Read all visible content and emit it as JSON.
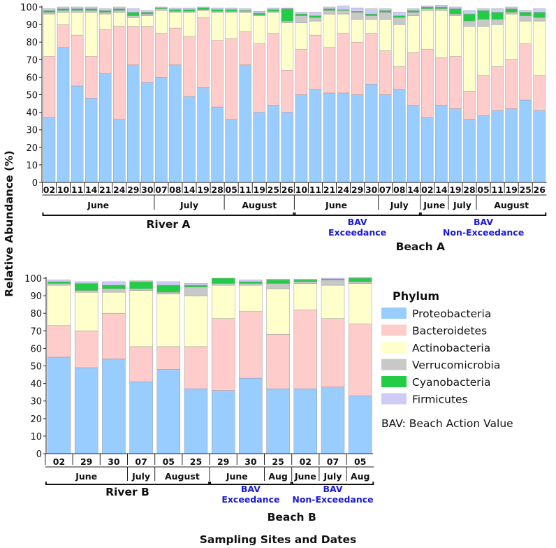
{
  "chart_data": {
    "type": "bar",
    "stacked": true,
    "ylabel": "Relative Abundance (%)",
    "xlabel": "Sampling Sites and Dates",
    "ylim": [
      0,
      100
    ],
    "yticks": [
      0,
      10,
      20,
      30,
      40,
      50,
      60,
      70,
      80,
      90,
      100
    ],
    "legend": {
      "title": "Phylum",
      "entries": [
        "Proteobacteria",
        "Bacteroidetes",
        "Actinobacteria",
        "Verrucomicrobia",
        "Cyanobacteria",
        "Firmicutes"
      ],
      "colors": [
        "#99ccff",
        "#ffcccc",
        "#ffffcc",
        "#c8c8c8",
        "#22cc44",
        "#ccccf7"
      ],
      "note": "BAV: Beach Action Value"
    },
    "panels": [
      {
        "name": "top",
        "categories": [
          "02",
          "10",
          "11",
          "14",
          "21",
          "24",
          "29",
          "30",
          "07",
          "08",
          "14",
          "19",
          "28",
          "05",
          "11",
          "19",
          "25",
          "26",
          "10",
          "11",
          "21",
          "24",
          "29",
          "30",
          "07",
          "08",
          "14",
          "02",
          "14",
          "19",
          "28",
          "05",
          "11",
          "19",
          "25",
          "26"
        ],
        "months": [
          {
            "label": "June",
            "count": 8
          },
          {
            "label": "July",
            "count": 5
          },
          {
            "label": "August",
            "count": 5
          },
          {
            "label": "June",
            "count": 6
          },
          {
            "label": "July",
            "count": 3
          },
          {
            "label": "June",
            "count": 2
          },
          {
            "label": "July",
            "count": 2
          },
          {
            "label": "August",
            "count": 5
          }
        ],
        "site_groups": [
          {
            "label": "River A",
            "count": 18
          },
          {
            "label": "",
            "count": 9,
            "bav": [
              "BAV",
              "Exceedance"
            ]
          },
          {
            "label": "",
            "count": 9,
            "bav": [
              "BAV",
              "Non-Exceedance"
            ]
          }
        ],
        "beach_label": "Beach A",
        "series": [
          {
            "name": "Proteobacteria",
            "values": [
              37,
              77,
              55,
              48,
              62,
              36,
              67,
              57,
              60,
              67,
              49,
              54,
              43,
              36,
              67,
              40,
              44,
              40,
              50,
              53,
              51,
              51,
              50,
              56,
              50,
              53,
              44,
              37,
              44,
              42,
              36,
              38,
              41,
              42,
              47,
              41
            ]
          },
          {
            "name": "Bacteroidetes",
            "values": [
              35,
              13,
              29,
              24,
              25,
              53,
              22,
              32,
              25,
              21,
              34,
              40,
              38,
              46,
              19,
              39,
              41,
              24,
              26,
              31,
              26,
              34,
              30,
              29,
              25,
              13,
              30,
              39,
              27,
              30,
              16,
              23,
              25,
              28,
              32,
              20
            ]
          },
          {
            "name": "Actinobacteria",
            "values": [
              24,
              7,
              13,
              25,
              9,
              8,
              5,
              6,
              13,
              9,
              14,
              4,
              16,
              15,
              11,
              16,
              12,
              27,
              15,
              8,
              19,
              11,
              13,
              8,
              18,
              24,
              21,
              22,
              27,
              23,
              37,
              28,
              24,
              26,
              13,
              31
            ]
          },
          {
            "name": "Verrucomicrobia",
            "values": [
              1,
              1,
              1,
              1,
              1,
              1,
              1,
              1,
              1,
              0.5,
              0.5,
              0.5,
              0.5,
              0.5,
              0.5,
              0.5,
              0.5,
              1,
              4,
              2,
              2,
              2,
              4,
              2,
              4,
              4,
              2,
              1,
              1,
              1,
              3,
              4,
              3,
              1,
              3,
              2
            ]
          },
          {
            "name": "Cyanobacteria",
            "values": [
              1,
              1,
              1,
              1,
              1,
              1,
              2,
              1,
              0.5,
              1,
              1,
              1,
              1,
              1,
              0.5,
              1,
              1,
              7,
              1,
              1,
              1,
              0.5,
              0.5,
              1,
              1,
              1,
              1,
              1,
              1,
              3,
              4,
              5,
              4,
              2,
              2,
              3
            ]
          },
          {
            "name": "Firmicutes",
            "values": [
              1,
              1,
              1,
              1,
              1,
              1,
              2,
              1,
              0.5,
              1,
              1,
              0.5,
              1,
              1,
              1,
              1,
              1,
              0.5,
              1,
              2,
              1,
              2,
              2,
              3,
              1,
              2,
              1,
              0.5,
              1,
              1,
              2,
              1,
              2,
              1,
              1,
              2
            ]
          }
        ]
      },
      {
        "name": "bottom",
        "categories": [
          "02",
          "29",
          "30",
          "07",
          "05",
          "25",
          "29",
          "30",
          "25",
          "02",
          "07",
          "05"
        ],
        "months": [
          {
            "label": "June",
            "count": 3
          },
          {
            "label": "July",
            "count": 1
          },
          {
            "label": "August",
            "count": 2
          },
          {
            "label": "June",
            "count": 2
          },
          {
            "label": "Aug",
            "count": 1
          },
          {
            "label": "June",
            "count": 1
          },
          {
            "label": "July",
            "count": 1
          },
          {
            "label": "Aug",
            "count": 1
          }
        ],
        "site_groups": [
          {
            "label": "River B",
            "count": 6
          },
          {
            "label": "",
            "count": 3,
            "bav": [
              "BAV",
              "Exceedance"
            ]
          },
          {
            "label": "",
            "count": 3,
            "bav": [
              "BAV",
              "Non-Exceedance"
            ]
          }
        ],
        "beach_label": "Beach B",
        "series": [
          {
            "name": "Proteobacteria",
            "values": [
              55,
              49,
              54,
              41,
              48,
              37,
              36,
              43,
              37,
              37,
              38,
              33
            ]
          },
          {
            "name": "Bacteroidetes",
            "values": [
              18,
              21,
              26,
              20,
              13,
              24,
              41,
              38,
              31,
              45,
              39,
              41
            ]
          },
          {
            "name": "Actinobacteria",
            "values": [
              23,
              22,
              12,
              32,
              30,
              29,
              19,
              15,
              26,
              15,
              19,
              23
            ]
          },
          {
            "name": "Verrucomicrobia",
            "values": [
              1,
              1,
              2,
              1,
              1,
              5,
              1,
              1,
              3,
              1,
              3,
              1
            ]
          },
          {
            "name": "Cyanobacteria",
            "values": [
              1,
              4,
              2,
              4,
              4,
              1,
              3,
              1,
              2,
              1,
              0.5,
              2
            ]
          },
          {
            "name": "Firmicutes",
            "values": [
              1,
              1,
              2,
              0.5,
              2,
              1,
              0,
              1,
              0.5,
              0.5,
              0.5,
              0.5
            ]
          }
        ]
      }
    ]
  }
}
